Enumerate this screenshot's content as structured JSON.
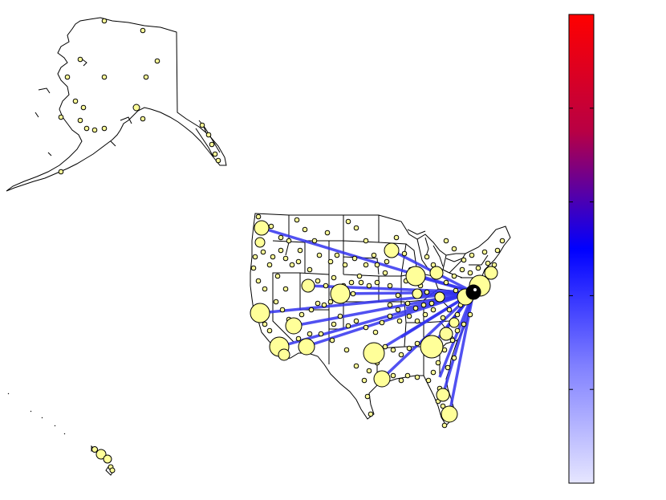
{
  "map": {
    "hub": {
      "name": "hub-airport",
      "color": "#000000"
    },
    "airport_color": "#ffff99",
    "airport_stroke": "#000000",
    "route_color": "#3333ee",
    "state_fill": "#ffffff",
    "state_stroke": "#000000"
  },
  "colorbar": {
    "colors": {
      "top": "#ff0000",
      "upper": "#b80044",
      "middle": "#0000ff",
      "lower": "#8080ff",
      "bottom": "#e6e6ff"
    },
    "tick_count": 5
  }
}
